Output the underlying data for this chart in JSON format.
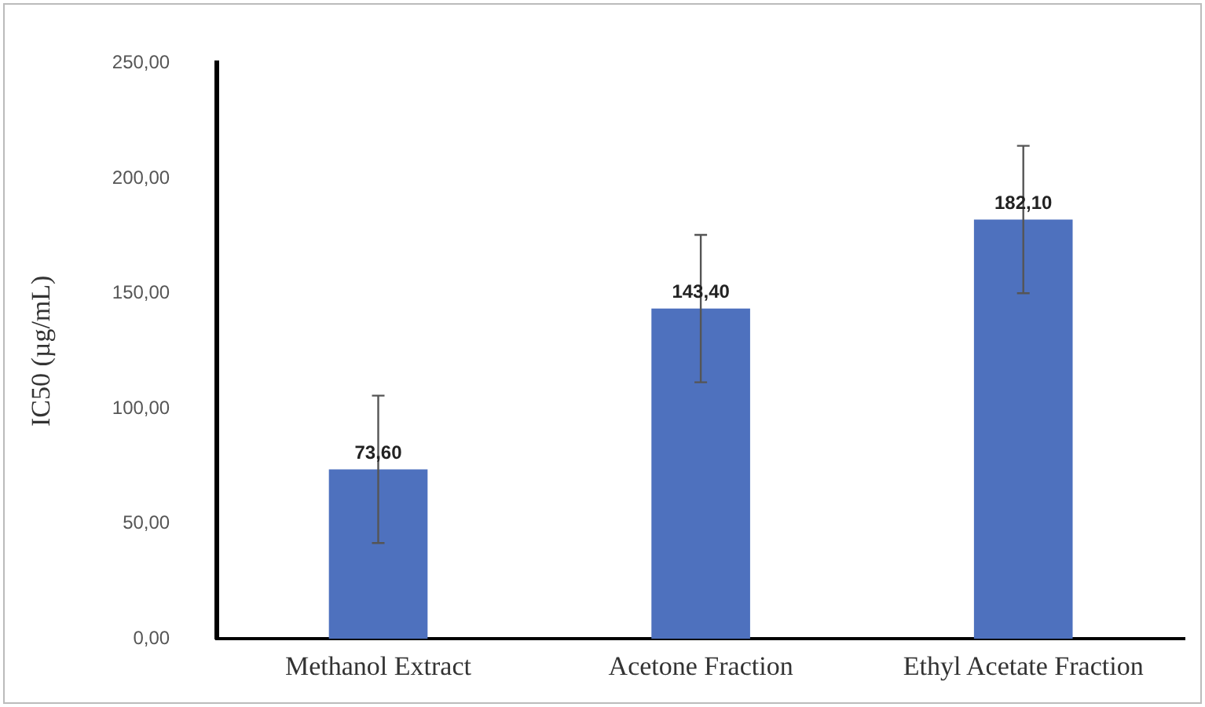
{
  "chart_data": {
    "type": "bar",
    "ylabel": "IC50 (µg/mL)",
    "categories": [
      "Methanol Extract",
      "Acetone Fraction",
      "Ethyl Acetate Fraction"
    ],
    "values": [
      73.6,
      143.4,
      182.1
    ],
    "color": "#4e71be",
    "errors": [
      32,
      32,
      32
    ],
    "value_labels": [
      "73,60",
      "143,40",
      "182,10"
    ],
    "ylim": [
      0,
      250
    ],
    "yticks": [
      {
        "value": 0,
        "label": "0,00"
      },
      {
        "value": 50,
        "label": "50,00"
      },
      {
        "value": 100,
        "label": "100,00"
      },
      {
        "value": 150,
        "label": "150,00"
      },
      {
        "value": 200,
        "label": "200,00"
      },
      {
        "value": 250,
        "label": "250,00"
      }
    ],
    "grid": false,
    "legend": false
  }
}
